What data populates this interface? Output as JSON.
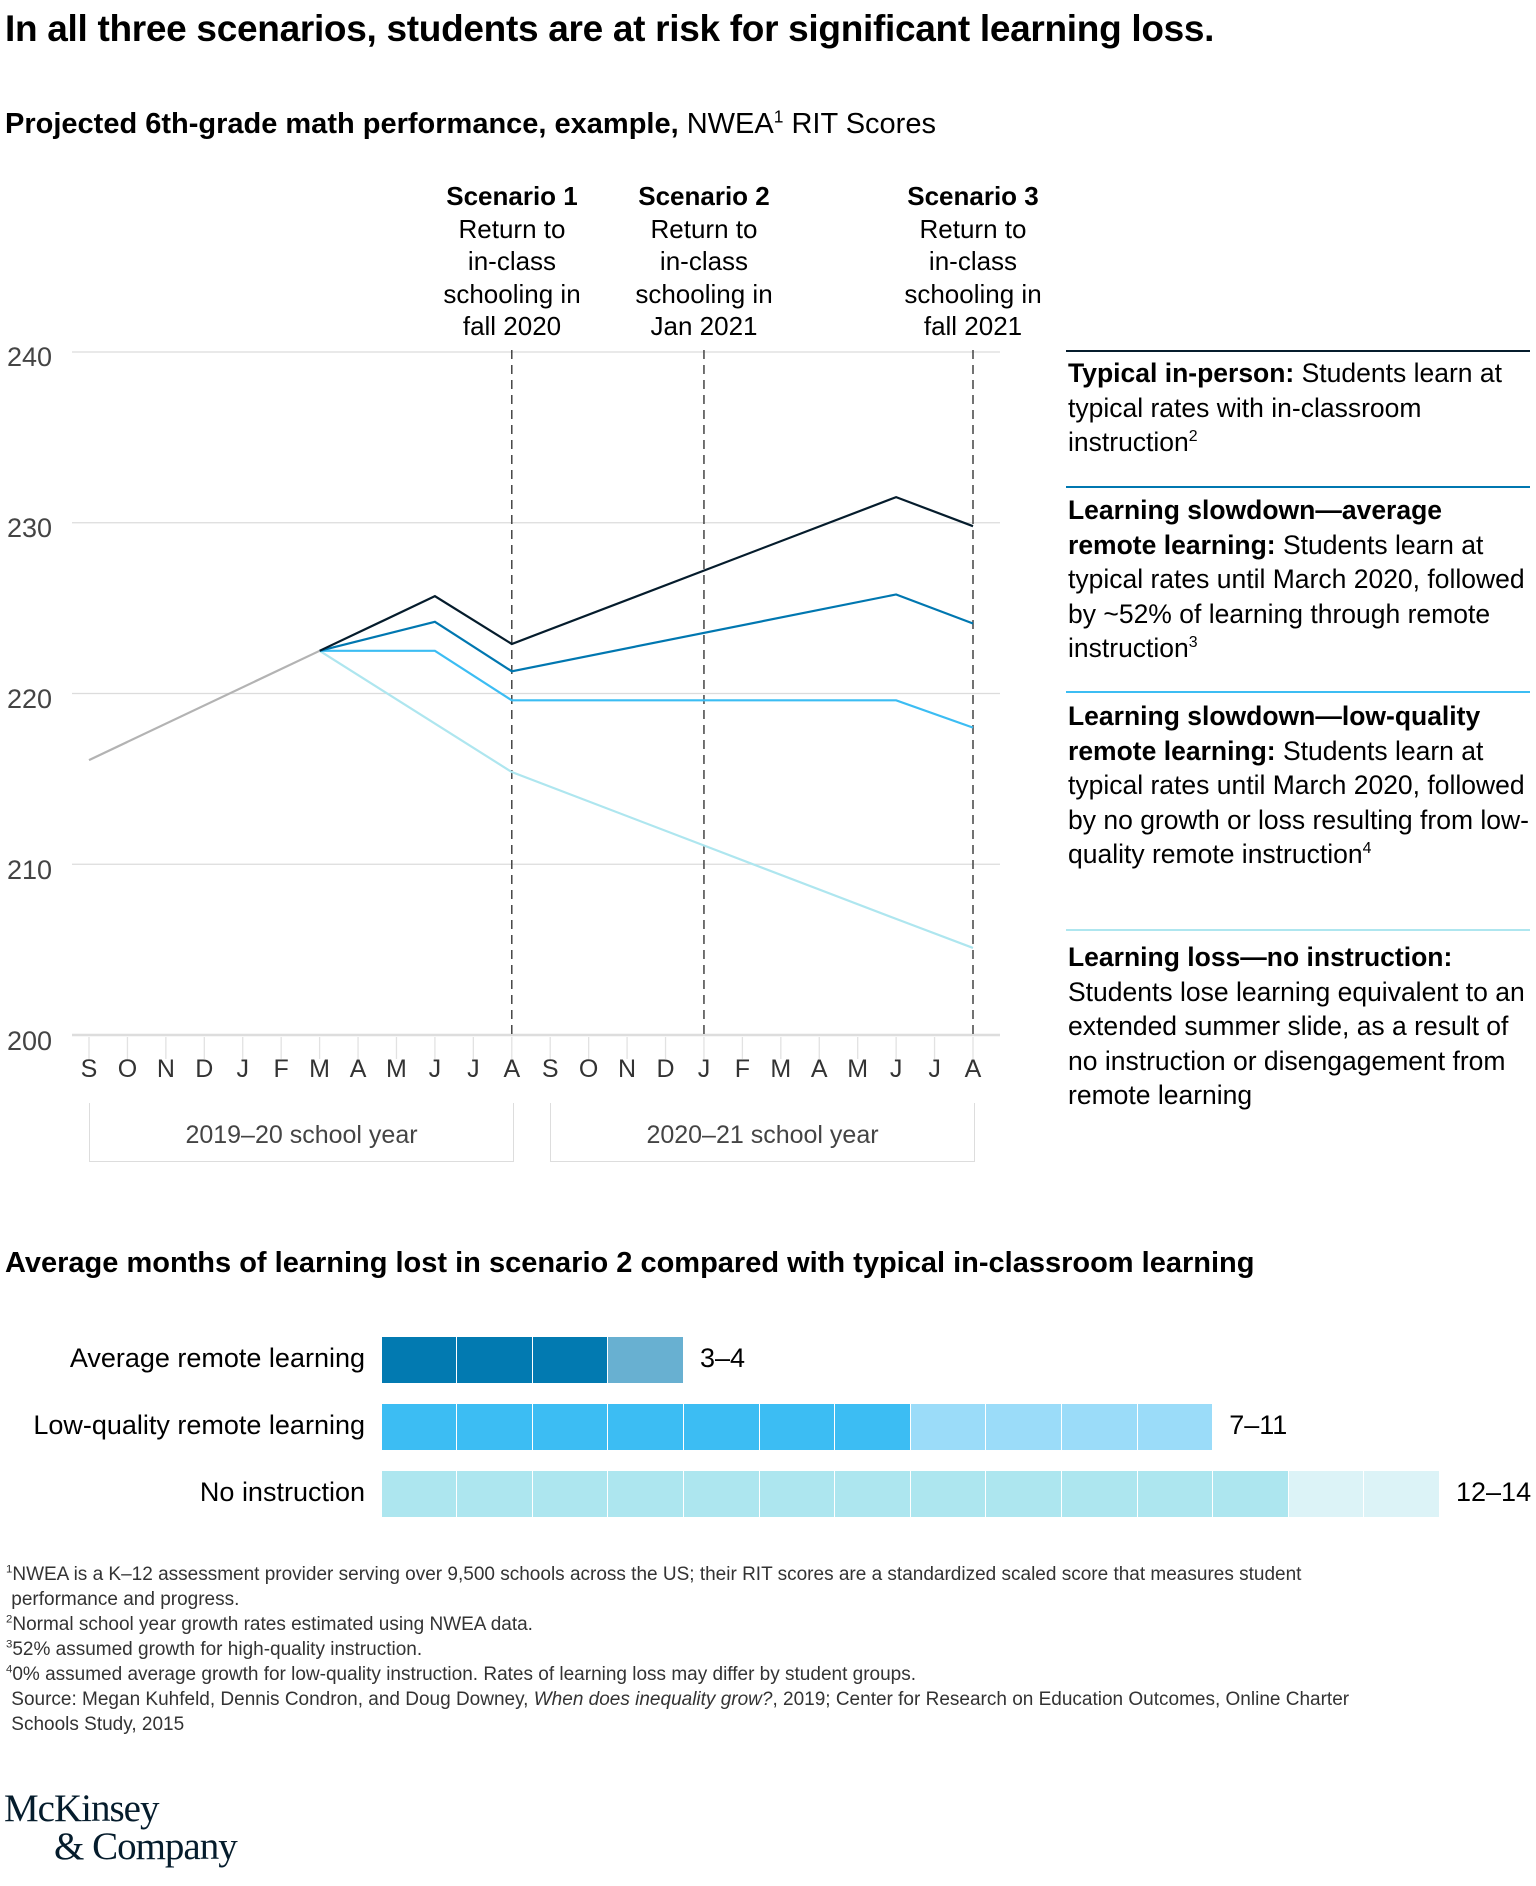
{
  "title": "In all three scenarios, students are at risk for significant learning loss.",
  "subtitle": {
    "bold": "Projected 6th-grade math performance, example,",
    "normal_pre": "NWEA",
    "sup": "1",
    "normal_post": "RIT Scores"
  },
  "scenarios": [
    {
      "name": "Scenario 1",
      "l1": "Return to",
      "l2": "in-class",
      "l3": "schooling in",
      "l4": "fall 2020"
    },
    {
      "name": "Scenario 2",
      "l1": "Return to",
      "l2": "in-class",
      "l3": "schooling in",
      "l4": "Jan 2021"
    },
    {
      "name": "Scenario 3",
      "l1": "Return to",
      "l2": "in-class",
      "l3": "schooling in",
      "l4": "fall 2021"
    }
  ],
  "legend": [
    {
      "bold": "Typical in-person:",
      "text": " Students learn at typical rates with in-classroom instruction",
      "sup": "2",
      "color": "#051c2c"
    },
    {
      "bold": "Learning slowdown—average remote learning:",
      "text": " Students learn at typical rates until March 2020, followed by ~52% of learning through remote instruction",
      "sup": "3",
      "color": "#0077b0"
    },
    {
      "bold": "Learning slowdown—low-quality remote learning:",
      "text": " Students learn at typical rates until March 2020, followed by no growth or loss resulting from low-quality remote instruction",
      "sup": "4",
      "color": "#3cbdf3"
    },
    {
      "bold": "Learning loss—no instruction:",
      "text": " Students lose learning equivalent to an extended summer slide, as a result of no instruction or disengagement from remote learning",
      "sup": "",
      "color": "#aee6ef"
    }
  ],
  "school_years": [
    "2019–20 school year",
    "2020–21 school year"
  ],
  "chart_data": [
    {
      "type": "line",
      "title": "Projected 6th-grade math performance, example, NWEA RIT Scores",
      "x": [
        "S",
        "O",
        "N",
        "D",
        "J",
        "F",
        "M",
        "A",
        "M",
        "J",
        "J",
        "A",
        "S",
        "O",
        "N",
        "D",
        "J",
        "F",
        "M",
        "A",
        "M",
        "J",
        "J",
        "A"
      ],
      "ylim": [
        200,
        240
      ],
      "yticks": [
        200,
        210,
        220,
        230,
        240
      ],
      "grid": true,
      "scenario_markers": [
        11,
        16,
        23
      ],
      "series": [
        {
          "name": "History",
          "color": "#b3b3b3",
          "points": [
            [
              0,
              216.1
            ],
            [
              6,
              222.5
            ]
          ]
        },
        {
          "name": "Typical in-person",
          "color": "#051c2c",
          "points": [
            [
              6,
              222.5
            ],
            [
              9,
              225.7
            ],
            [
              11,
              222.9
            ],
            [
              21,
              231.5
            ],
            [
              23,
              229.8
            ]
          ]
        },
        {
          "name": "Learning slowdown—average remote learning",
          "color": "#0077b0",
          "points": [
            [
              6,
              222.5
            ],
            [
              9,
              224.2
            ],
            [
              11,
              221.3
            ],
            [
              21,
              225.8
            ],
            [
              23,
              224.1
            ]
          ]
        },
        {
          "name": "Learning slowdown—low-quality remote learning",
          "color": "#3cbdf3",
          "points": [
            [
              6,
              222.5
            ],
            [
              9,
              222.5
            ],
            [
              11,
              219.6
            ],
            [
              21,
              219.6
            ],
            [
              23,
              218.0
            ]
          ]
        },
        {
          "name": "Learning loss—no instruction",
          "color": "#aee6ef",
          "points": [
            [
              6,
              222.5
            ],
            [
              11,
              215.4
            ],
            [
              21,
              206.8
            ],
            [
              23,
              205.1
            ]
          ]
        }
      ]
    },
    {
      "type": "bar",
      "title": "Average months of learning lost in scenario 2 compared with typical in-classroom learning",
      "categories": [
        "Average remote learning",
        "Low-quality remote learning",
        "No instruction"
      ],
      "ranges": [
        [
          3,
          4
        ],
        [
          7,
          11
        ],
        [
          12,
          14
        ]
      ],
      "labels": [
        "3–4",
        "7–11",
        "12–14"
      ],
      "colors": [
        [
          "#027ab1",
          "#68b0d1"
        ],
        [
          "#3cbdf3",
          "#9bdcf9"
        ],
        [
          "#ade6ef",
          "#dcf3f7"
        ]
      ]
    }
  ],
  "footnotes": [
    {
      "sup": "1",
      "text": "NWEA is a K–12 assessment provider serving over 9,500 schools across the US; their RIT scores are a standardized scaled score that measures student"
    },
    {
      "sup": "",
      "text": " performance and progress."
    },
    {
      "sup": "2",
      "text": "Normal school year growth rates estimated using NWEA data."
    },
    {
      "sup": "3",
      "text": "52% assumed growth for high-quality instruction."
    },
    {
      "sup": "4",
      "text": "0% assumed average growth for low-quality instruction. Rates of learning loss may differ by student groups."
    }
  ],
  "source": {
    "pre": " Source: Megan Kuhfeld, Dennis Condron, and Doug Downey, ",
    "italic": "When does inequality grow?",
    "post": ", 2019; Center for Research on Education Outcomes, Online Charter",
    "line2": " Schools Study, 2015"
  },
  "logo": {
    "l1": "McKinsey",
    "l2": "& Company"
  }
}
